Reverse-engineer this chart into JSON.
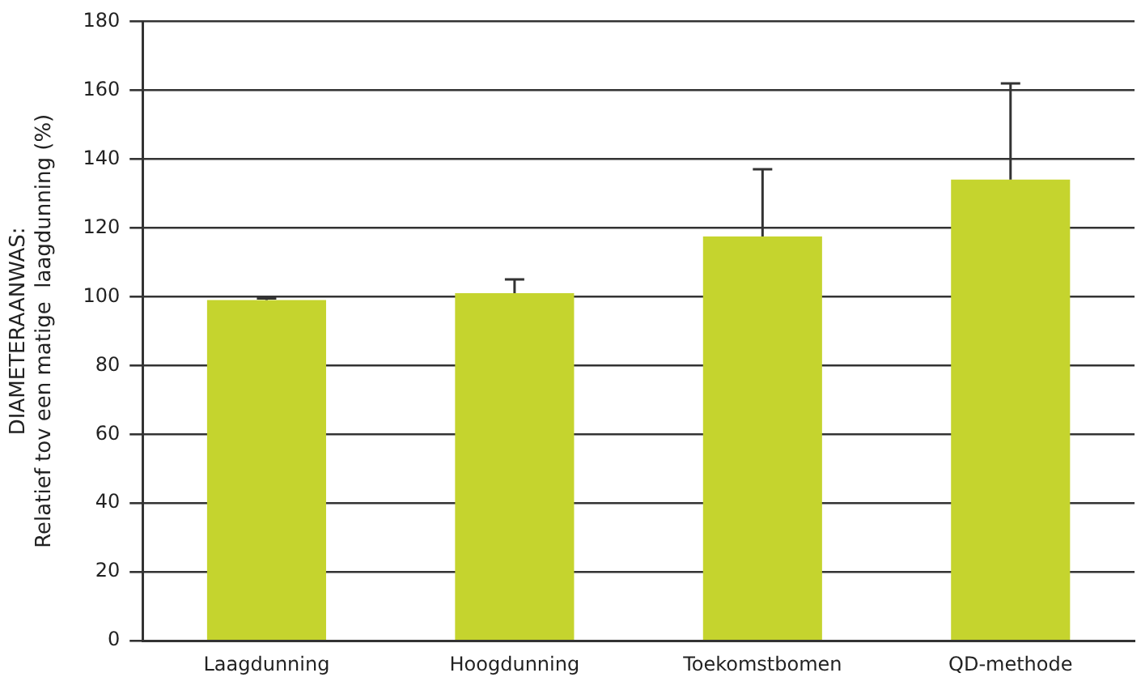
{
  "chart_data": {
    "type": "bar",
    "ylabel": "DIAMETERAANWAS:\nRelatief tov een matige  laagdunning (%)",
    "categories": [
      "Laagdunning",
      "Hoogdunning",
      "Toekomstbomen",
      "QD-methode"
    ],
    "values": [
      99,
      101,
      117.5,
      134
    ],
    "errors": [
      [
        99,
        99.5
      ],
      [
        101,
        105
      ],
      [
        117.5,
        137
      ],
      [
        134,
        162
      ]
    ],
    "color": "#c5d42e",
    "ylim": [
      0,
      180
    ],
    "yticks": [
      0,
      20,
      40,
      60,
      80,
      100,
      120,
      140,
      160,
      180
    ],
    "grid": "y",
    "legend": false
  }
}
